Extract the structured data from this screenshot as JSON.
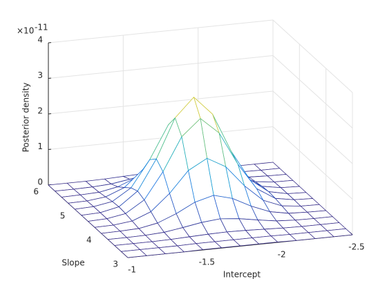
{
  "chart_data": {
    "type": "mesh",
    "x_label": "Intercept",
    "y_label": "Slope",
    "z_label": "Posterior density",
    "zscale_label": "×10",
    "zscale_exponent": "-11",
    "x": [
      -1,
      -1.125,
      -1.25,
      -1.375,
      -1.5,
      -1.625,
      -1.75,
      -1.875,
      -2,
      -2.125,
      -2.25,
      -2.375,
      -2.5
    ],
    "y": [
      3,
      3.25,
      3.5,
      3.75,
      4,
      4.25,
      4.5,
      4.75,
      5,
      5.25,
      5.5,
      5.75,
      6
    ],
    "z": [
      [
        0,
        0,
        0,
        0,
        0.01,
        0.01,
        0.01,
        0.01,
        0.01,
        0,
        0,
        0,
        0
      ],
      [
        0,
        0,
        0,
        0,
        0.01,
        0.01,
        0.01,
        0.01,
        0.01,
        0,
        0,
        0,
        0
      ],
      [
        0,
        0,
        0,
        0.01,
        0.03,
        0.05,
        0.06,
        0.05,
        0.03,
        0.01,
        0,
        0,
        0
      ],
      [
        0,
        0,
        0.01,
        0.04,
        0.12,
        0.21,
        0.26,
        0.21,
        0.12,
        0.04,
        0.01,
        0,
        0
      ],
      [
        0,
        0.01,
        0.03,
        0.13,
        0.34,
        0.61,
        0.75,
        0.61,
        0.34,
        0.13,
        0.03,
        0.01,
        0
      ],
      [
        0,
        0.01,
        0.07,
        0.28,
        0.74,
        1.33,
        1.62,
        1.33,
        0.74,
        0.28,
        0.07,
        0.01,
        0
      ],
      [
        0,
        0.02,
        0.11,
        0.44,
        1.18,
        2.11,
        2.57,
        2.11,
        1.18,
        0.44,
        0.11,
        0.02,
        0
      ],
      [
        0,
        0.02,
        0.13,
        0.52,
        1.37,
        2.47,
        3.0,
        2.47,
        1.37,
        0.52,
        0.13,
        0.02,
        0
      ],
      [
        0,
        0.02,
        0.11,
        0.44,
        1.18,
        2.11,
        2.57,
        2.11,
        1.18,
        0.44,
        0.11,
        0.02,
        0
      ],
      [
        0,
        0.01,
        0.07,
        0.28,
        0.74,
        1.33,
        1.62,
        1.33,
        0.74,
        0.28,
        0.07,
        0.01,
        0
      ],
      [
        0,
        0.01,
        0.03,
        0.13,
        0.34,
        0.61,
        0.75,
        0.61,
        0.34,
        0.13,
        0.03,
        0.01,
        0
      ],
      [
        0,
        0,
        0.01,
        0.04,
        0.12,
        0.21,
        0.26,
        0.21,
        0.12,
        0.04,
        0.01,
        0,
        0
      ],
      [
        0,
        0,
        0,
        0.01,
        0.03,
        0.05,
        0.06,
        0.05,
        0.03,
        0.01,
        0,
        0,
        0
      ]
    ],
    "xlim": [
      -2.5,
      -1
    ],
    "ylim": [
      3,
      6
    ],
    "zlim": [
      0,
      4
    ],
    "xticks": [
      -2.5,
      -2,
      -1.5,
      -1
    ],
    "yticks": [
      3,
      4,
      5,
      6
    ],
    "zticks": [
      0,
      1,
      2,
      3,
      4
    ],
    "colormap": "parula",
    "grid": true
  }
}
